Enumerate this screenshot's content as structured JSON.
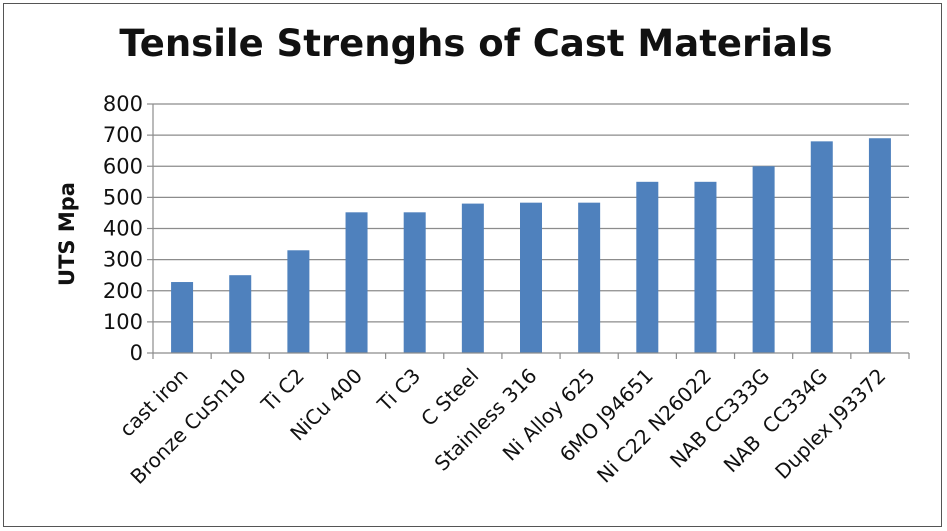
{
  "chart_data": {
    "type": "bar",
    "title": "Tensile Strenghs of Cast Materials",
    "xlabel": "",
    "ylabel": "UTS Mpa",
    "ylim": [
      0,
      800
    ],
    "yticks": [
      0,
      100,
      200,
      300,
      400,
      500,
      600,
      700,
      800
    ],
    "grid": true,
    "legend": "none",
    "bar_color": "#4F81BD",
    "categories": [
      "cast iron",
      "Bronze CuSn10",
      "Ti C2",
      "NiCu 400",
      "Ti C3",
      "C Steel",
      "Stainless 316",
      "Ni Alloy 625",
      "6MO J94651",
      "Ni C22 N26022",
      "NAB CC333G",
      "NAB  CC334G",
      "Duplex J93372"
    ],
    "values": [
      228,
      250,
      330,
      452,
      452,
      480,
      483,
      483,
      550,
      550,
      600,
      680,
      690
    ]
  }
}
